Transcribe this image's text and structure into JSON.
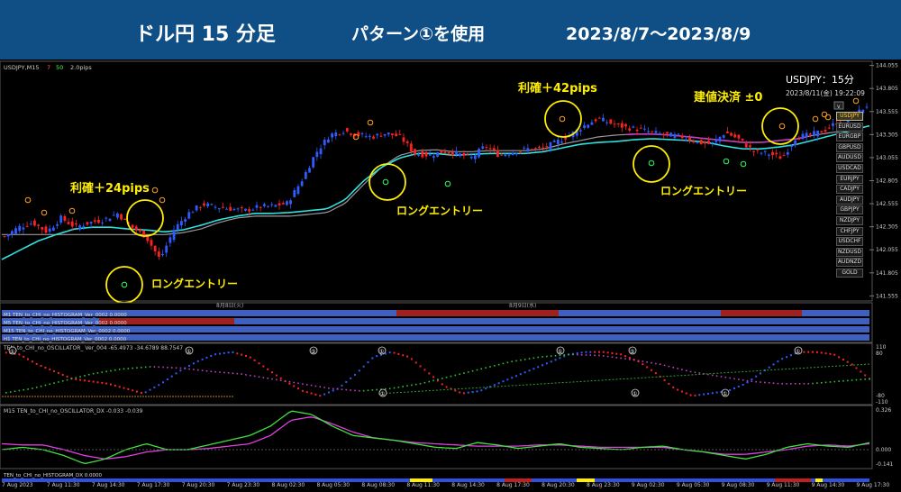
{
  "banner": {
    "title": "ドル円 15 分足",
    "pattern": "パターン①を使用",
    "range": "2023/8/7～2023/8/9"
  },
  "window": {
    "symbol_label": "USDJPY,M15",
    "n1": "7",
    "n2": "50",
    "spread": "2.0pips",
    "info_title": "USDJPY：15分",
    "info_date": "2023/8/11(金) 19:22:09",
    "mini_v": "v"
  },
  "annotations": {
    "tp1": "利確＋24pips",
    "tp2": "利確＋42pips",
    "breakeven": "建値決済 ±0",
    "long": "ロングエントリー"
  },
  "symbols": [
    "USDJPY",
    "EURUSD",
    "EURGBP",
    "GBPUSD",
    "AUDUSD",
    "USDCAD",
    "EURJPY",
    "CADJPY",
    "AUDJPY",
    "GBPJPY",
    "NZDJPY",
    "CHFJPY",
    "USDCHF",
    "NZDUSD",
    "AUDNZD",
    "GOLD"
  ],
  "selected_symbol": "USDJPY",
  "colors": {
    "bull": "#2e5cff",
    "bear": "#ff2020",
    "ma_fast": "#c040c0",
    "ma_slow": "#30e0e0",
    "up_dot": "#2e5cff",
    "down_dot": "#ff2020",
    "banner": "#0f4f86",
    "circle": "#ffee00"
  },
  "panels": {
    "day_labels": [
      "8月8日(火)",
      "8月9日(水)"
    ],
    "histogram_rows": [
      "M1 TEN_to_CHI_no_HISTOGRAM_Ver_0002 0.0000",
      "M5 TEN_to_CHI_no_HISTOGRAM_Ver_0002 0.0000",
      "M15 TEN_to_CHI_no_HISTOGRAM_Ver_0002 0.0000",
      "H1 TEN_to_CHI_no_HISTOGRAM_Ver_0002 0.0000"
    ],
    "oscillator_label": "TEN_to_CHI_no_OSCILLATOR_ Ver_004 -65.4973 -34.6789 88.7547",
    "osc_levels": [
      "110",
      "80",
      "-80",
      "-110"
    ],
    "osc_markers": [
      "①",
      "①",
      "⑤",
      "①",
      "①",
      "⑤",
      "①",
      "①",
      "①",
      "①"
    ],
    "dx_label": "M15 TEN_to_CHI_no_OSCILLATOR_DX -0.033 -0.039",
    "dx_levels": [
      "0.326",
      "0.000",
      "-0.141"
    ],
    "hist_dx_label": "TEN_to_CHI_no_HISTOGRAM_DX 0.0000"
  },
  "chart_data": {
    "type": "candlestick",
    "symbol": "USDJPY",
    "timeframe": "M15",
    "price_axis": [
      144.055,
      143.805,
      143.555,
      143.305,
      143.055,
      142.805,
      142.555,
      142.305,
      142.055,
      141.805,
      141.555
    ],
    "ylim": [
      141.5,
      144.1
    ],
    "x_labels": [
      "7 Aug 2023",
      "7 Aug 11:30",
      "7 Aug 14:30",
      "7 Aug 17:30",
      "7 Aug 20:30",
      "7 Aug 23:30",
      "8 Aug 02:30",
      "8 Aug 05:30",
      "8 Aug 08:30",
      "8 Aug 11:30",
      "8 Aug 14:30",
      "8 Aug 17:30",
      "8 Aug 20:30",
      "8 Aug 23:30",
      "9 Aug 02:30",
      "9 Aug 05:30",
      "9 Aug 08:30",
      "9 Aug 11:30",
      "9 Aug 14:30",
      "9 Aug 17:30"
    ],
    "close_path": [
      142.2,
      142.3,
      142.35,
      142.25,
      142.4,
      142.3,
      142.35,
      142.38,
      142.45,
      142.3,
      142.2,
      141.95,
      142.28,
      142.45,
      142.55,
      142.52,
      142.5,
      142.48,
      142.52,
      142.53,
      142.56,
      142.8,
      143.1,
      143.3,
      143.35,
      143.3,
      143.28,
      143.32,
      143.28,
      143.1,
      143.08,
      143.12,
      143.1,
      143.05,
      143.18,
      143.08,
      143.12,
      143.15,
      143.15,
      143.22,
      143.3,
      143.4,
      143.48,
      143.42,
      143.38,
      143.36,
      143.32,
      143.3,
      143.28,
      143.22,
      143.2,
      143.33,
      143.25,
      143.12,
      143.1,
      143.05,
      143.28,
      143.3,
      143.35,
      143.45,
      143.5,
      143.62
    ],
    "ma_slow_path": [
      141.95,
      142.05,
      142.15,
      142.22,
      142.28,
      142.3,
      142.3,
      142.28,
      142.27,
      142.25,
      142.27,
      142.32,
      142.38,
      142.42,
      142.45,
      142.45,
      142.46,
      142.48,
      142.5,
      142.6,
      142.8,
      142.95,
      143.05,
      143.1,
      143.1,
      143.08,
      143.09,
      143.1,
      143.1,
      143.1,
      143.12,
      143.16,
      143.2,
      143.22,
      143.23,
      143.25,
      143.26,
      143.25,
      143.24,
      143.22,
      143.18,
      143.15,
      143.15,
      143.17,
      143.2,
      143.25,
      143.3,
      143.35,
      143.4
    ],
    "ma_fast_path": [
      142.22,
      142.22,
      142.22,
      142.22,
      142.22,
      142.22,
      142.22,
      142.22,
      142.22,
      142.22,
      142.24,
      142.28,
      142.35,
      142.4,
      142.42,
      142.42,
      142.42,
      142.44,
      142.46,
      142.56,
      142.76,
      142.95,
      143.08,
      143.13,
      143.14,
      143.12,
      143.12,
      143.13,
      143.13,
      143.13,
      143.15,
      143.2,
      143.24,
      143.28,
      143.3,
      143.31,
      143.31,
      143.3,
      143.28,
      143.26,
      143.24,
      143.22,
      143.22,
      143.24,
      143.26,
      143.3,
      143.33,
      143.36,
      143.4
    ]
  }
}
